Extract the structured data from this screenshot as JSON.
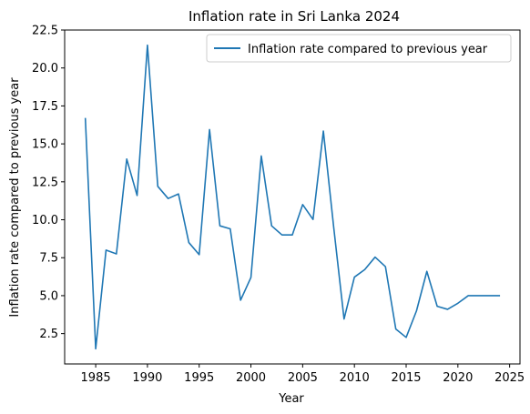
{
  "chart_data": {
    "type": "line",
    "title": "Inflation rate in Sri Lanka 2024",
    "xlabel": "Year",
    "ylabel": "Inflation rate compared to previous year",
    "xlim": [
      1982.0,
      2026.0
    ],
    "ylim": [
      0.5,
      22.5
    ],
    "xticks": [
      1985,
      1990,
      1995,
      2000,
      2005,
      2010,
      2015,
      2020,
      2025
    ],
    "yticks": [
      2.5,
      5.0,
      7.5,
      10.0,
      12.5,
      15.0,
      17.5,
      20.0,
      22.5
    ],
    "ytick_labels": [
      "2.5",
      "5.0",
      "7.5",
      "10.0",
      "12.5",
      "15.0",
      "17.5",
      "20.0",
      "22.5"
    ],
    "grid": false,
    "legend_position": "top-right",
    "series": [
      {
        "name": "Inflation rate compared to previous year",
        "color": "#1f77b4",
        "x": [
          1984,
          1985,
          1986,
          1987,
          1988,
          1989,
          1990,
          1991,
          1992,
          1993,
          1994,
          1995,
          1996,
          1997,
          1998,
          1999,
          2000,
          2001,
          2002,
          2003,
          2004,
          2005,
          2006,
          2007,
          2008,
          2009,
          2010,
          2011,
          2012,
          2013,
          2014,
          2015,
          2016,
          2017,
          2018,
          2019,
          2020,
          2021,
          2022,
          2023,
          2024
        ],
        "y": [
          16.66,
          1.5,
          8.0,
          7.75,
          14.0,
          11.6,
          21.5,
          12.2,
          11.4,
          11.7,
          8.5,
          7.7,
          15.94,
          9.6,
          9.4,
          4.7,
          6.2,
          14.2,
          9.6,
          9.0,
          9.0,
          11.0,
          10.02,
          15.84,
          9.5,
          3.46,
          6.22,
          6.72,
          7.54,
          6.91,
          2.8,
          2.25,
          4.0,
          6.6,
          4.3,
          4.1,
          4.5,
          5.0,
          5.0,
          5.0,
          5.0
        ]
      }
    ]
  }
}
